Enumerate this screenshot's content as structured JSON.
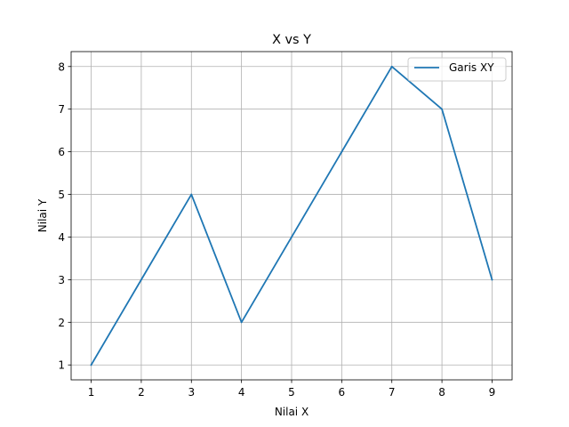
{
  "chart_data": {
    "type": "line",
    "title": "X vs Y",
    "xlabel": "Nilai X",
    "ylabel": "Nilai Y",
    "x": [
      1,
      2,
      3,
      4,
      5,
      6,
      7,
      8,
      9
    ],
    "series": [
      {
        "name": "Garis XY",
        "values": [
          1,
          3,
          5,
          2,
          4,
          6,
          8,
          7,
          3
        ],
        "color": "#1f77b4"
      }
    ],
    "xlim": [
      0.6,
      9.4
    ],
    "ylim": [
      0.65,
      8.35
    ],
    "xticks": [
      1,
      2,
      3,
      4,
      5,
      6,
      7,
      8,
      9
    ],
    "yticks": [
      1,
      2,
      3,
      4,
      5,
      6,
      7,
      8
    ],
    "grid": true,
    "grid_color": "#b0b0b0",
    "legend_position": "top-right"
  }
}
